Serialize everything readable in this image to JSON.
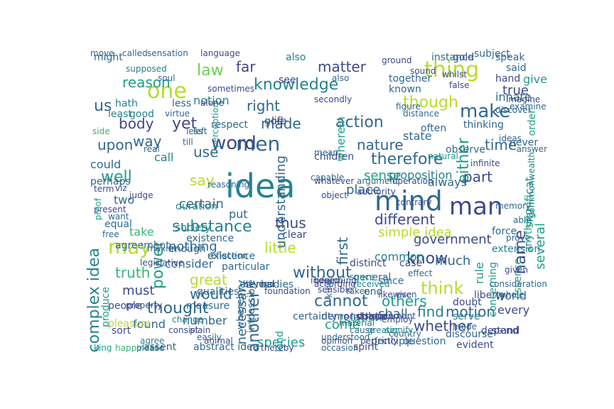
{
  "words": [
    "idea",
    "mind",
    "one",
    "thing",
    "men",
    "may",
    "make",
    "man",
    "word",
    "know",
    "yet",
    "us",
    "knowledge",
    "right",
    "made",
    "action",
    "though",
    "either",
    "nature",
    "therefore",
    "part",
    "several",
    "say",
    "power",
    "certain",
    "first",
    "another",
    "without",
    "name",
    "think",
    "great",
    "would",
    "thought",
    "truth",
    "must",
    "simple idea",
    "complex idea",
    "substance",
    "different",
    "little",
    "nothing",
    "cannot",
    "come",
    "shall",
    "find",
    "motion",
    "whether",
    "species",
    "others",
    "number",
    "reason",
    "law",
    "far",
    "matter",
    "also",
    "see",
    "body",
    "way",
    "upon",
    "well",
    "two",
    "could",
    "use",
    "call",
    "time",
    "sense",
    "proposition",
    "place",
    "always",
    "government",
    "much",
    "thus",
    "clear",
    "put",
    "consider",
    "existence",
    "duration",
    "take",
    "found",
    "sort",
    "produce",
    "relation",
    "end",
    "bodies",
    "general",
    "common",
    "particular",
    "necessary",
    "distinct",
    "since",
    "world",
    "liberty",
    "stand",
    "every",
    "evident",
    "rule",
    "doubt",
    "order",
    "good",
    "true",
    "never",
    "give",
    "hath",
    "least",
    "perhaps",
    "people",
    "pleasure",
    "assent",
    "measure",
    "kind",
    "might",
    "called",
    "supposed",
    "sensation",
    "language",
    "soul",
    "notion",
    "less",
    "perception",
    "understanding",
    "god",
    "life",
    "children",
    "wherein",
    "state",
    "often",
    "together",
    "known",
    "gold",
    "instance",
    "subject",
    "speak",
    "said",
    "hand",
    "innate",
    "thinking",
    "observe",
    "natural",
    "infinite",
    "significat",
    "anything",
    "concerning",
    "essence",
    "force",
    "extension",
    "memory",
    "eternal",
    "space",
    "beyond",
    "case",
    "according",
    "capable",
    "whatever",
    "operation",
    "authority",
    "indeed",
    "received",
    "demonstration",
    "certainty",
    "colour",
    "cause",
    "opinion",
    "occasion",
    "question",
    "principle",
    "spirit",
    "discourse",
    "depend",
    "serve",
    "mode",
    "abstract idea",
    "happiness",
    "king",
    "animal",
    "thereby",
    "whereby",
    "impossible",
    "qualities",
    "existence",
    "reflection",
    "enough",
    "agreement",
    "society",
    "equal",
    "free",
    "want",
    "present",
    "proof",
    "viz",
    "term",
    "side",
    "move",
    "virtue",
    "sometimes",
    "alone",
    "respect",
    "less",
    "left",
    "till",
    "real",
    "able",
    "prove",
    "answer",
    "whole",
    "given",
    "consideration",
    "even",
    "effect",
    "contrary",
    "sound",
    "ground",
    "examine",
    "discover",
    "imagine",
    "commonwealth",
    "ideas",
    "whilst",
    "false",
    "also",
    "distance",
    "figure",
    "secondly",
    "mean",
    "argument",
    "reasoning",
    "judge",
    "object",
    "property",
    "maxim",
    "legislative",
    "please",
    "agree",
    "consist",
    "change",
    "plain",
    "easily",
    "foundation",
    "beginning",
    "sensible",
    "taken",
    "understood",
    "greater",
    "country",
    "disagreement",
    "kind",
    "material",
    "signify",
    "likewise",
    "employ",
    "perfectly"
  ],
  "colors": [
    "#440154",
    "#482878",
    "#3e4989",
    "#31688e",
    "#26828e",
    "#1f9e89",
    "#35b779",
    "#6ece58",
    "#b5de2b",
    "#fde725"
  ]
}
